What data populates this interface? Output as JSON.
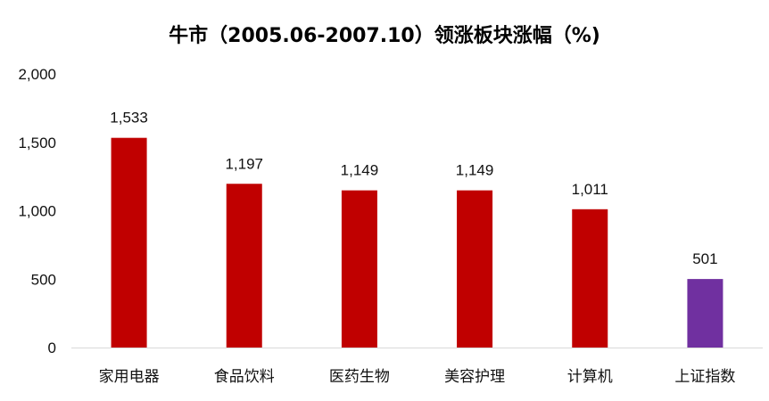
{
  "chart_data": {
    "type": "bar",
    "title": "牛市（2005.06-2007.10）领涨板块涨幅（%)",
    "xlabel": "",
    "ylabel": "",
    "categories": [
      "家用电器",
      "食品饮料",
      "医药生物",
      "美容护理",
      "计算机",
      "上证指数"
    ],
    "values": [
      1533,
      1197,
      1149,
      1149,
      1011,
      501
    ],
    "data_labels": [
      "1,533",
      "1,197",
      "1,149",
      "1,149",
      "1,011",
      "501"
    ],
    "ylim": [
      0,
      2000
    ],
    "yticks": [
      0,
      500,
      1000,
      1500,
      2000
    ],
    "ytick_labels": [
      "0",
      "500",
      "1,000",
      "1,500",
      "2,000"
    ],
    "bar_colors": [
      "#C00000",
      "#C00000",
      "#C00000",
      "#C00000",
      "#C00000",
      "#7030A0"
    ],
    "grid": false,
    "legend": "none"
  }
}
